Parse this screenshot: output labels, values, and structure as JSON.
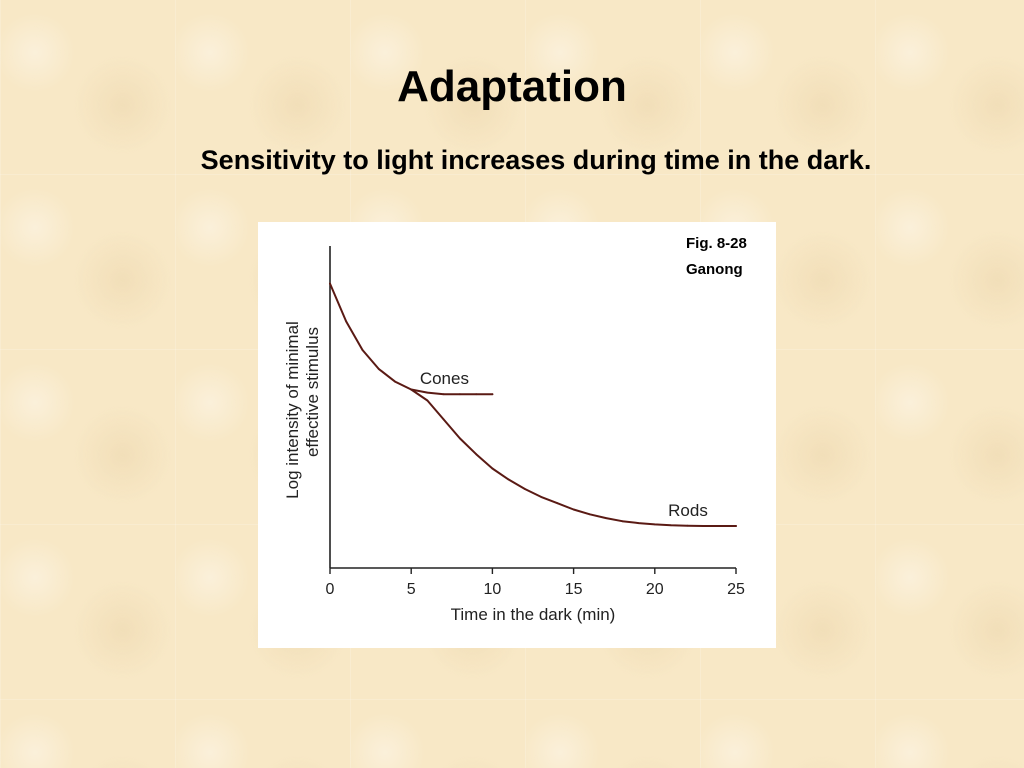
{
  "slide": {
    "title": "Adaptation",
    "subtitle": "Sensitivity to light increases during time in the dark."
  },
  "figure": {
    "ref_line1": "Fig. 8-28",
    "ref_line2": "Ganong"
  },
  "chart_data": {
    "type": "line",
    "xlabel": "Time in the dark (min)",
    "ylabel_line1": "Log intensity of minimal",
    "ylabel_line2": "effective stimulus",
    "xlim": [
      0,
      25
    ],
    "ylim": [
      0,
      10
    ],
    "x_ticks": [
      "0",
      "5",
      "10",
      "15",
      "20",
      "25"
    ],
    "series": [
      {
        "name": "Cones",
        "x": [
          0,
          1,
          2,
          3,
          4,
          5,
          6,
          7,
          8,
          9,
          10
        ],
        "y": [
          9.0,
          7.8,
          6.9,
          6.3,
          5.9,
          5.65,
          5.55,
          5.5,
          5.5,
          5.5,
          5.5
        ]
      },
      {
        "name": "Rods",
        "x": [
          5,
          6,
          7,
          8,
          9,
          10,
          11,
          12,
          13,
          14,
          15,
          16,
          17,
          18,
          19,
          20,
          21,
          22,
          23,
          24,
          25
        ],
        "y": [
          5.65,
          5.3,
          4.7,
          4.1,
          3.6,
          3.15,
          2.8,
          2.5,
          2.25,
          2.05,
          1.85,
          1.7,
          1.58,
          1.48,
          1.42,
          1.38,
          1.35,
          1.34,
          1.33,
          1.33,
          1.33
        ]
      }
    ],
    "line_color": "#5a1a14",
    "grid": false
  }
}
